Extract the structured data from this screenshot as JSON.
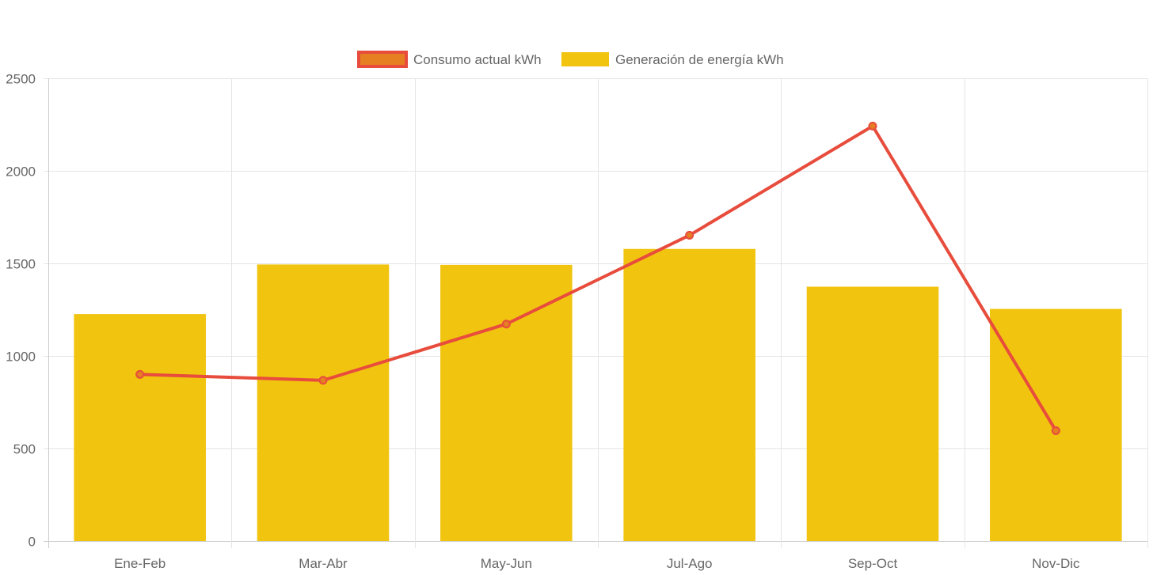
{
  "chart_data": {
    "type": "bar",
    "categories": [
      "Ene-Feb",
      "Mar-Abr",
      "May-Jun",
      "Jul-Ago",
      "Sep-Oct",
      "Nov-Dic"
    ],
    "series": [
      {
        "name": "Consumo actual kWh",
        "type": "line",
        "values": [
          900,
          868,
          1172,
          1652,
          2242,
          596
        ],
        "color": "#e74c3c",
        "point_fill": "#e67e22"
      },
      {
        "name": "Generación de energía kWh",
        "type": "bar",
        "values": [
          1226,
          1494,
          1492,
          1578,
          1374,
          1254
        ],
        "color": "#f1c40f"
      }
    ],
    "y_ticks": [
      "0",
      "500",
      "1000",
      "1500",
      "2000",
      "2500"
    ],
    "ylim": [
      0,
      2500
    ],
    "grid": true,
    "legend_position": "top-center",
    "colors": {
      "grid": "#e5e5e5",
      "axis": "#cccccc",
      "text": "#666666",
      "legend_line_box_fill": "#e67e22",
      "legend_line_box_border": "#e74c3c"
    }
  }
}
